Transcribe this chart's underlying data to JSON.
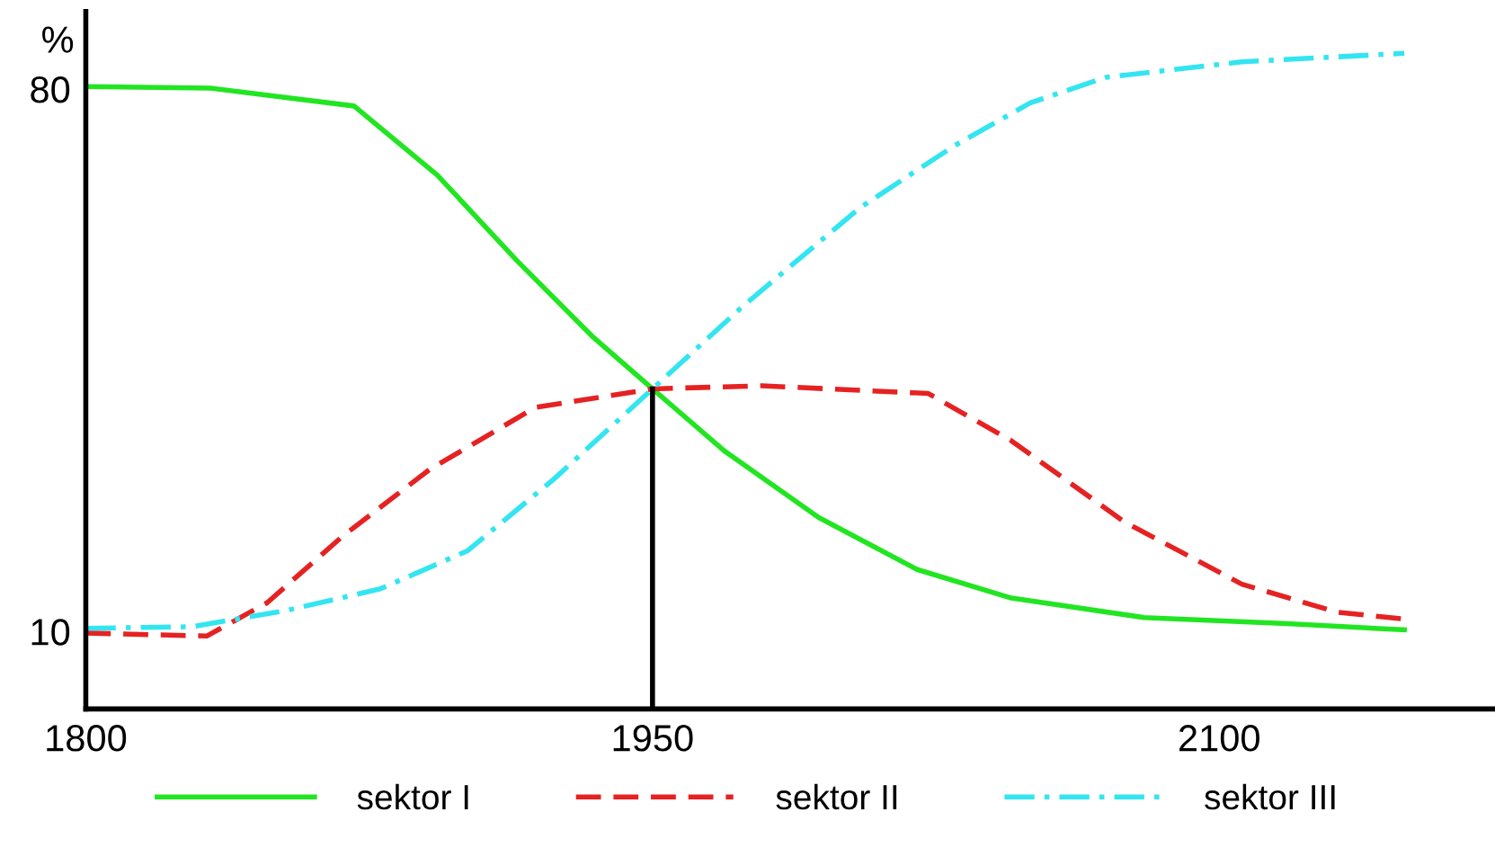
{
  "chart_data": {
    "type": "line",
    "ylabel": "%",
    "xlim": [
      1800,
      2173
    ],
    "xticks": [
      1800,
      1950,
      2100
    ],
    "ylim": [
      0,
      90
    ],
    "yticks": [
      10,
      80
    ],
    "grid": false,
    "legend": "bottom",
    "marker": "none",
    "ref_lines": [
      {
        "axis": "x",
        "value": 1950,
        "color": "#000000",
        "line_style": "solid"
      }
    ],
    "series": [
      {
        "name": "sektor I",
        "color": "#22e522",
        "line_style": "solid",
        "x": [
          1800,
          1833,
          1871,
          1893,
          1914,
          1934,
          1950,
          1969,
          1994,
          2020,
          2045,
          2080,
          2118,
          2149
        ],
        "values": [
          80.3,
          80.1,
          77.8,
          68.9,
          57.9,
          48.1,
          41.3,
          33.3,
          24.7,
          18.0,
          14.3,
          11.8,
          11.0,
          10.2
        ]
      },
      {
        "name": "sektor II",
        "color": "#e52222",
        "line_style": "dashed",
        "x": [
          1800,
          1832,
          1848,
          1868,
          1891,
          1919,
          1950,
          1979,
          2023,
          2045,
          2075,
          2106,
          2131,
          2149
        ],
        "values": [
          9.8,
          9.4,
          13.7,
          22.3,
          30.9,
          38.9,
          41.3,
          41.7,
          40.7,
          34.6,
          24.1,
          16.1,
          12.5,
          11.6
        ]
      },
      {
        "name": "sektor III",
        "color": "#33e5f0",
        "line_style": "dashdot",
        "x": [
          1800,
          1828,
          1853,
          1878,
          1901,
          1924,
          1950,
          1974,
          2005,
          2030,
          2050,
          2070,
          2106,
          2149
        ],
        "values": [
          10.4,
          10.6,
          12.7,
          15.5,
          20.4,
          29.7,
          41.3,
          52.0,
          64.7,
          72.7,
          78.2,
          81.5,
          83.5,
          84.6
        ]
      }
    ]
  }
}
